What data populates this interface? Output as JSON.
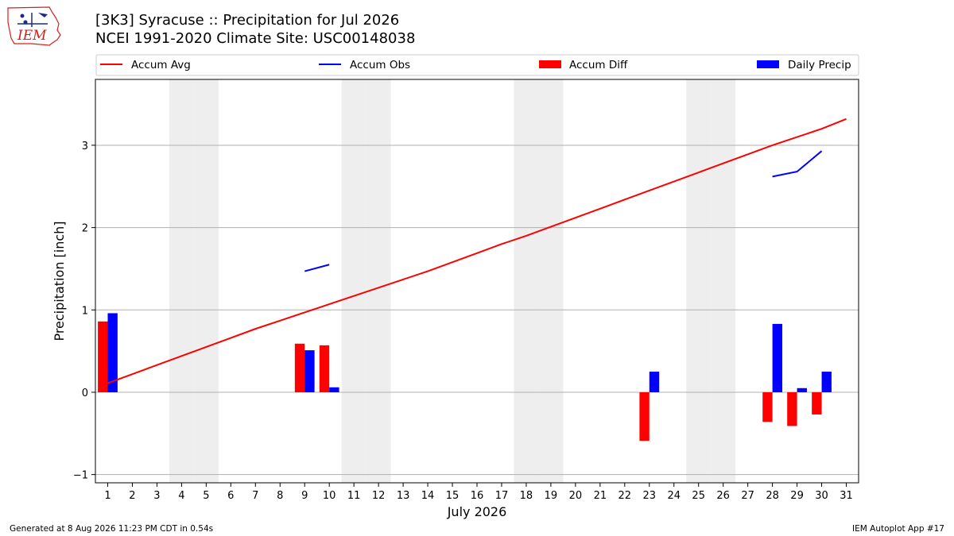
{
  "header": {
    "title_line1": "[3K3] Syracuse :: Precipitation for Jul 2026",
    "title_line2": "NCEI 1991-2020 Climate Site: USC00148038",
    "logo_text": "IEM"
  },
  "footer": {
    "left": "Generated at 8 Aug 2026 11:23 PM CDT in 0.54s",
    "right": "IEM Autoplot App #17"
  },
  "colors": {
    "accum_avg": "#ff0000",
    "accum_obs": "#0000ff",
    "accum_diff": "#ff0000",
    "daily_precip": "#0000ff",
    "weekend_shade": "#eeeeee",
    "grid": "#b0b0b0"
  },
  "chart_data": {
    "type": "bar",
    "xlabel": "July 2026",
    "ylabel": "Precipitation [inch]",
    "xlim": [
      0.5,
      31.5
    ],
    "ylim": [
      -1.1,
      3.8
    ],
    "yticks": [
      -1,
      0,
      1,
      2,
      3
    ],
    "xticks": [
      1,
      2,
      3,
      4,
      5,
      6,
      7,
      8,
      9,
      10,
      11,
      12,
      13,
      14,
      15,
      16,
      17,
      18,
      19,
      20,
      21,
      22,
      23,
      24,
      25,
      26,
      27,
      28,
      29,
      30,
      31
    ],
    "grid": true,
    "legend": {
      "placement": "top",
      "entries": [
        {
          "label": "Accum Avg",
          "kind": "line",
          "color": "#ff0000"
        },
        {
          "label": "Accum Obs",
          "kind": "line",
          "color": "#0000ff"
        },
        {
          "label": "Accum Diff",
          "kind": "bar",
          "color": "#ff0000"
        },
        {
          "label": "Daily Precip",
          "kind": "bar",
          "color": "#0000ff"
        }
      ]
    },
    "weekend_days": [
      4,
      5,
      11,
      12,
      18,
      19,
      25,
      26
    ],
    "accum_avg": {
      "x": [
        1,
        2,
        3,
        4,
        5,
        6,
        7,
        8,
        9,
        10,
        11,
        12,
        13,
        14,
        15,
        16,
        17,
        18,
        19,
        20,
        21,
        22,
        23,
        24,
        25,
        26,
        27,
        28,
        29,
        30,
        31
      ],
      "y": [
        0.11,
        0.22,
        0.33,
        0.44,
        0.55,
        0.66,
        0.77,
        0.87,
        0.97,
        1.07,
        1.17,
        1.27,
        1.37,
        1.47,
        1.58,
        1.69,
        1.8,
        1.9,
        2.01,
        2.12,
        2.23,
        2.34,
        2.45,
        2.56,
        2.67,
        2.78,
        2.89,
        3.0,
        3.1,
        3.2,
        3.32
      ]
    },
    "accum_obs": {
      "segments": [
        {
          "x": [
            9,
            10
          ],
          "y": [
            1.47,
            1.55
          ]
        },
        {
          "x": [
            28,
            29,
            30
          ],
          "y": [
            2.62,
            2.68,
            2.93
          ]
        }
      ]
    },
    "accum_diff": {
      "x": [
        1,
        9,
        10,
        23,
        28,
        29,
        30
      ],
      "y": [
        0.86,
        0.59,
        0.57,
        -0.59,
        -0.36,
        -0.41,
        -0.27
      ]
    },
    "daily_precip": {
      "x": [
        1,
        9,
        10,
        23,
        28,
        29,
        30
      ],
      "y": [
        0.96,
        0.51,
        0.06,
        0.25,
        0.83,
        0.05,
        0.25
      ]
    }
  }
}
